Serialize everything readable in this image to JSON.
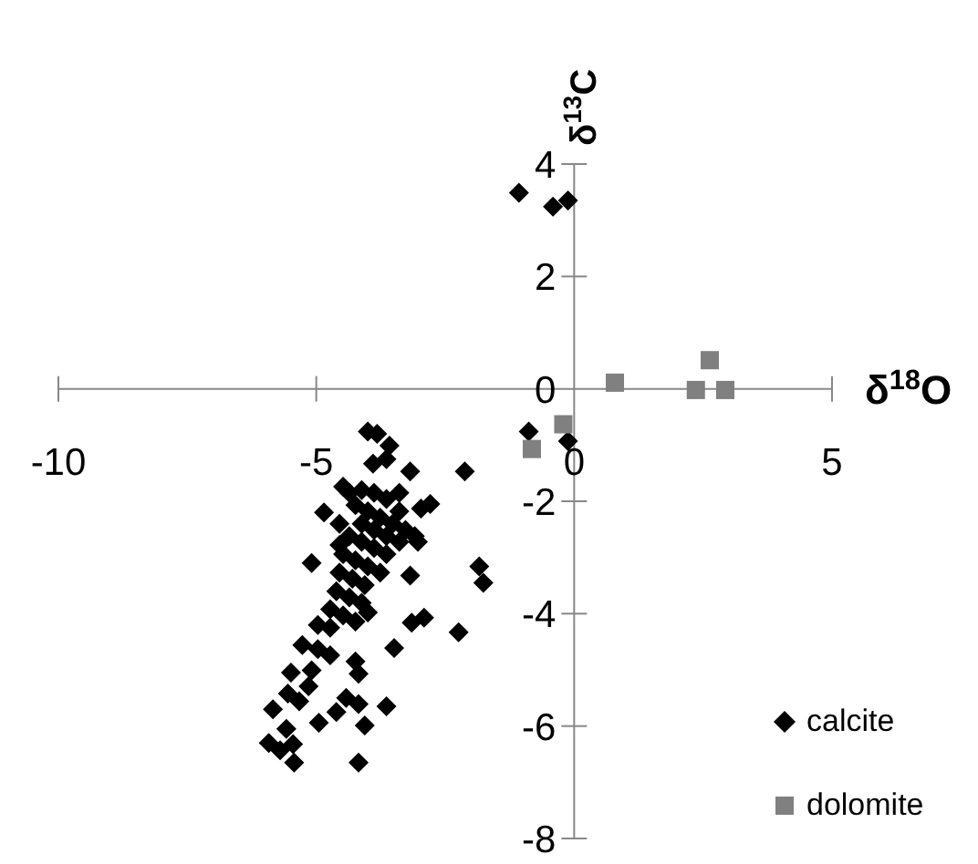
{
  "chart_data": {
    "type": "scatter",
    "xlabel": "δ$^{18}$O",
    "ylabel": "δ$^{13}$C",
    "xlim": [
      -10,
      5
    ],
    "xticks": [
      -10,
      -5,
      0,
      5
    ],
    "ylim": [
      -8,
      4
    ],
    "yticks": [
      -8,
      -6,
      -4,
      -2,
      0,
      2,
      4
    ],
    "grid": false,
    "legend": "bottom right",
    "series": [
      {
        "name": "calcite",
        "color": "#000000",
        "marker": "diamond",
        "x": [
          -1.07,
          -0.41,
          -0.12,
          -0.88,
          -0.12,
          -2.12,
          -4.0,
          -3.82,
          -3.58,
          -3.64,
          -3.9,
          -3.18,
          -3.39,
          -4.48,
          -2.79,
          -2.97,
          -4.85,
          -4.55,
          -5.09,
          -3.18,
          -1.84,
          -1.76,
          -3.03,
          -3.15,
          -2.91,
          -2.24,
          -3.49,
          -5.27,
          -4.97,
          -4.73,
          -4.24,
          -4.18,
          -5.49,
          -5.09,
          -5.15,
          -5.55,
          -5.33,
          -4.42,
          -4.18,
          -3.64,
          -4.61,
          -5.84,
          -4.95,
          -4.06,
          -5.58,
          -5.92,
          -5.7,
          -5.43,
          -4.18,
          -5.45,
          -4.36,
          -4.12,
          -3.88,
          -3.64,
          -4.24,
          -4.0,
          -3.76,
          -3.52,
          -3.27,
          -3.09,
          -4.12,
          -3.88,
          -3.64,
          -3.39,
          -4.36,
          -4.12,
          -3.88,
          -3.64,
          -4.48,
          -4.24,
          -4.0,
          -3.76,
          -4.55,
          -4.3,
          -4.06,
          -4.61,
          -4.36,
          -4.12,
          -4.73,
          -4.48,
          -4.24,
          -4.97,
          -4.73,
          -4.0,
          -3.39,
          -4.55
        ],
        "values": [
          3.49,
          3.24,
          3.35,
          -0.76,
          -0.93,
          -1.47,
          -0.76,
          -0.8,
          -1.01,
          -1.25,
          -1.33,
          -1.47,
          -1.85,
          -1.74,
          -2.05,
          -2.13,
          -2.2,
          -2.4,
          -3.1,
          -3.32,
          -3.16,
          -3.45,
          -2.72,
          -4.16,
          -4.07,
          -4.33,
          -4.61,
          -4.56,
          -4.63,
          -4.74,
          -4.85,
          -5.07,
          -5.05,
          -5.01,
          -5.29,
          -5.42,
          -5.56,
          -5.5,
          -5.61,
          -5.65,
          -5.75,
          -5.7,
          -5.94,
          -5.99,
          -6.05,
          -6.3,
          -6.43,
          -6.65,
          -6.65,
          -6.32,
          -1.85,
          -1.8,
          -1.85,
          -1.96,
          -2.07,
          -2.18,
          -2.29,
          -2.4,
          -2.51,
          -2.62,
          -2.4,
          -2.51,
          -2.62,
          -2.72,
          -2.62,
          -2.72,
          -2.83,
          -2.94,
          -2.94,
          -3.05,
          -3.16,
          -3.27,
          -3.27,
          -3.38,
          -3.49,
          -3.6,
          -3.71,
          -3.81,
          -3.92,
          -4.03,
          -4.14,
          -4.2,
          -4.25,
          -3.98,
          -2.18,
          -2.78
        ]
      },
      {
        "name": "dolomite",
        "color": "#808080",
        "marker": "square",
        "x": [
          -0.82,
          -0.21,
          0.79,
          2.36,
          2.63,
          2.93
        ],
        "values": [
          -1.07,
          -0.63,
          0.11,
          -0.02,
          0.51,
          -0.02
        ]
      }
    ]
  }
}
